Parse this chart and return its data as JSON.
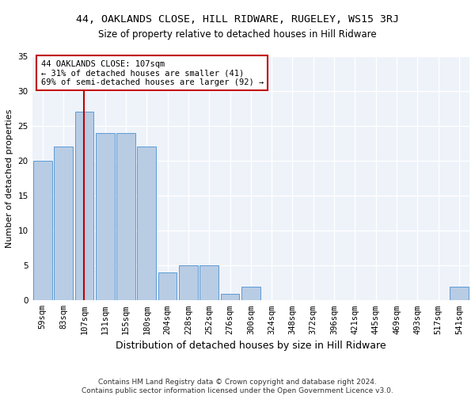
{
  "title1": "44, OAKLANDS CLOSE, HILL RIDWARE, RUGELEY, WS15 3RJ",
  "title2": "Size of property relative to detached houses in Hill Ridware",
  "xlabel": "Distribution of detached houses by size in Hill Ridware",
  "ylabel": "Number of detached properties",
  "footnote1": "Contains HM Land Registry data © Crown copyright and database right 2024.",
  "footnote2": "Contains public sector information licensed under the Open Government Licence v3.0.",
  "categories": [
    "59sqm",
    "83sqm",
    "107sqm",
    "131sqm",
    "155sqm",
    "180sqm",
    "204sqm",
    "228sqm",
    "252sqm",
    "276sqm",
    "300sqm",
    "324sqm",
    "348sqm",
    "372sqm",
    "396sqm",
    "421sqm",
    "445sqm",
    "469sqm",
    "493sqm",
    "517sqm",
    "541sqm"
  ],
  "values": [
    20,
    22,
    27,
    24,
    24,
    22,
    4,
    5,
    5,
    1,
    2,
    0,
    0,
    0,
    0,
    0,
    0,
    0,
    0,
    0,
    2
  ],
  "bar_color": "#b8cce4",
  "bar_edge_color": "#5b9bd5",
  "vline_x_index": 2,
  "vline_color": "#c00000",
  "annotation_line1": "44 OAKLANDS CLOSE: 107sqm",
  "annotation_line2": "← 31% of detached houses are smaller (41)",
  "annotation_line3": "69% of semi-detached houses are larger (92) →",
  "annotation_box_color": "#c00000",
  "ylim": [
    0,
    35
  ],
  "yticks": [
    0,
    5,
    10,
    15,
    20,
    25,
    30,
    35
  ],
  "bg_color": "#eef2f9",
  "grid_color": "#ffffff",
  "title_fontsize": 9.5,
  "subtitle_fontsize": 8.5,
  "xlabel_fontsize": 9,
  "ylabel_fontsize": 8,
  "tick_fontsize": 7.5,
  "annotation_fontsize": 7.5,
  "footnote_fontsize": 6.5
}
